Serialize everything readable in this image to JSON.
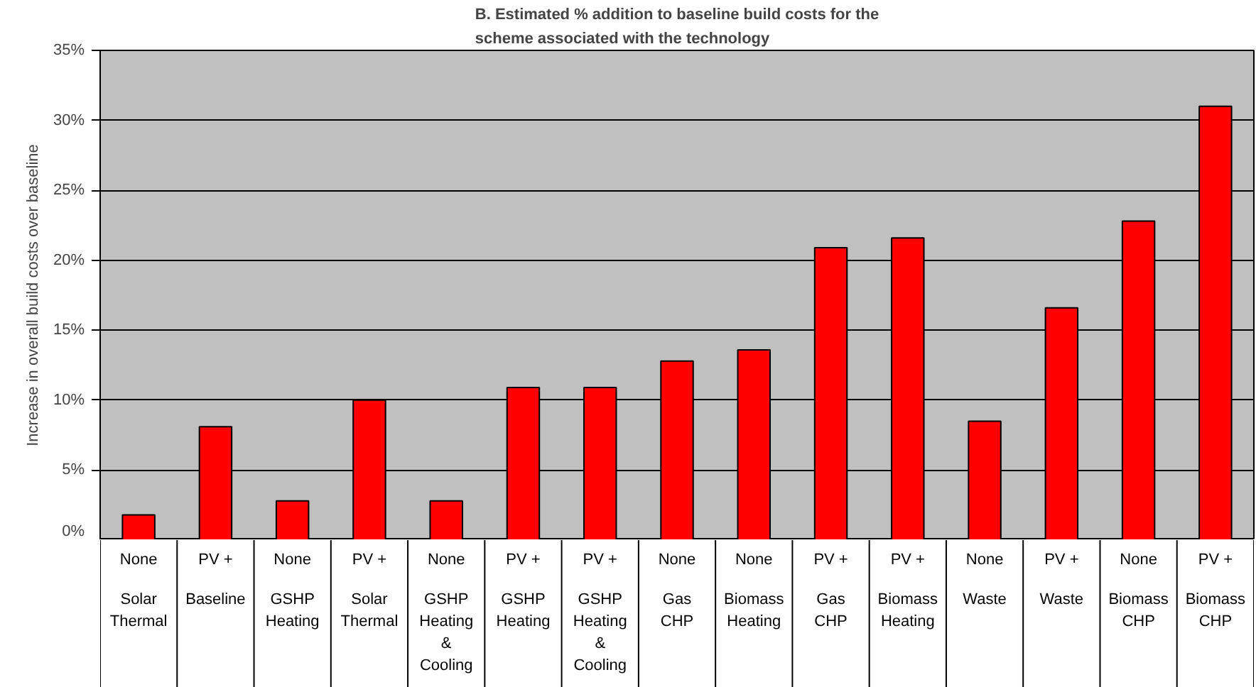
{
  "chart_data": {
    "type": "bar",
    "title": "B. Estimated % addition to baseline build costs for the\nscheme associated with the technology",
    "ylabel": "Increase in overall build costs over baseline",
    "categories": [
      "None\nSolar\nThermal",
      "PV +\nBaseline",
      "None\nGSHP\nHeating",
      "PV +\nSolar\nThermal",
      "None\nGSHP\nHeating\n&\nCooling",
      "PV +\nGSHP\nHeating",
      "PV +\nGSHP\nHeating\n&\nCooling",
      "None\nGas\nCHP",
      "None\nBiomass\nHeating",
      "PV +\nGas\nCHP",
      "PV +\nBiomass\nHeating",
      "None\nWaste",
      "PV +\nWaste",
      "None\nBiomass\nCHP",
      "PV +\nBiomass\nCHP"
    ],
    "values": [
      1.8,
      8.1,
      2.8,
      10.0,
      2.8,
      10.9,
      10.9,
      12.8,
      13.6,
      20.9,
      21.6,
      8.5,
      16.6,
      22.8,
      31.0
    ],
    "color": "#ff0000",
    "ylim": [
      0,
      35
    ],
    "yticks": [
      {
        "value": 0,
        "label": "0%"
      },
      {
        "value": 5,
        "label": "5%"
      },
      {
        "value": 10,
        "label": "10%"
      },
      {
        "value": 15,
        "label": "15%"
      },
      {
        "value": 20,
        "label": "20%"
      },
      {
        "value": 25,
        "label": "25%"
      },
      {
        "value": 30,
        "label": "30%"
      },
      {
        "value": 35,
        "label": "35%"
      }
    ],
    "grid": "y"
  }
}
